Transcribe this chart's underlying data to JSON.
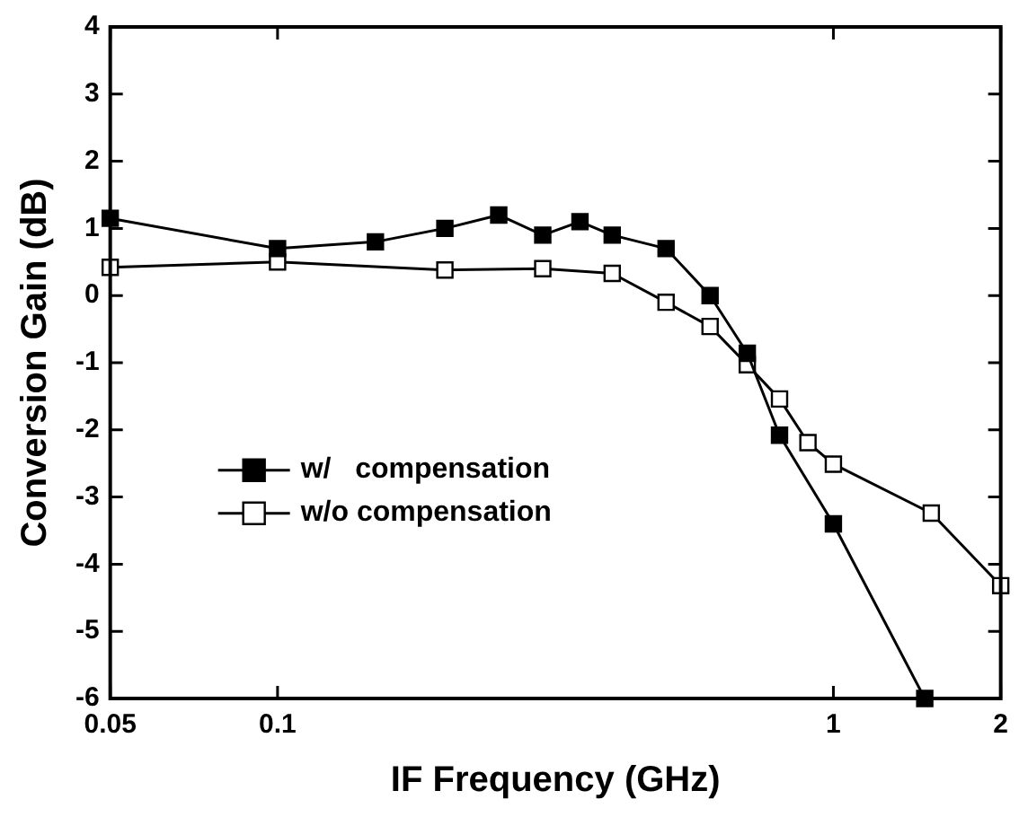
{
  "chart_data": {
    "type": "line",
    "xlabel": "IF Frequency (GHz)",
    "ylabel": "Conversion Gain (dB)",
    "log": "x",
    "xlim": [
      0.05,
      2
    ],
    "xticks": [
      0.05,
      0.1,
      1,
      2
    ],
    "ylim": [
      -6,
      4
    ],
    "yticks": [
      -6,
      -5,
      -4,
      -3,
      -2,
      -1,
      0,
      1,
      2,
      3,
      4
    ],
    "grid": false,
    "legend": "center left",
    "marker": "square",
    "line_style": "solid",
    "series": [
      {
        "name": "w/   compensation",
        "color": "#000000",
        "x": [
          0.05,
          0.1,
          0.15,
          0.2,
          0.25,
          0.3,
          0.35,
          0.4,
          0.5,
          0.6,
          0.7,
          0.8,
          1.0,
          1.46
        ],
        "values": [
          1.15,
          0.7,
          0.8,
          1.0,
          1.2,
          0.9,
          1.1,
          0.9,
          0.7,
          0.0,
          -0.86,
          -2.08,
          -3.4,
          -6
        ]
      },
      {
        "name": "w/o compensation",
        "color": "#ffffff",
        "x": [
          0.05,
          0.1,
          0.2,
          0.3,
          0.4,
          0.5,
          0.6,
          0.7,
          0.8,
          0.9,
          1.0,
          1.5,
          2
        ],
        "values": [
          0.42,
          0.5,
          0.38,
          0.4,
          0.33,
          -0.1,
          -0.46,
          -1.03,
          -1.54,
          -2.19,
          -2.51,
          -3.24,
          -4.32
        ]
      }
    ]
  }
}
